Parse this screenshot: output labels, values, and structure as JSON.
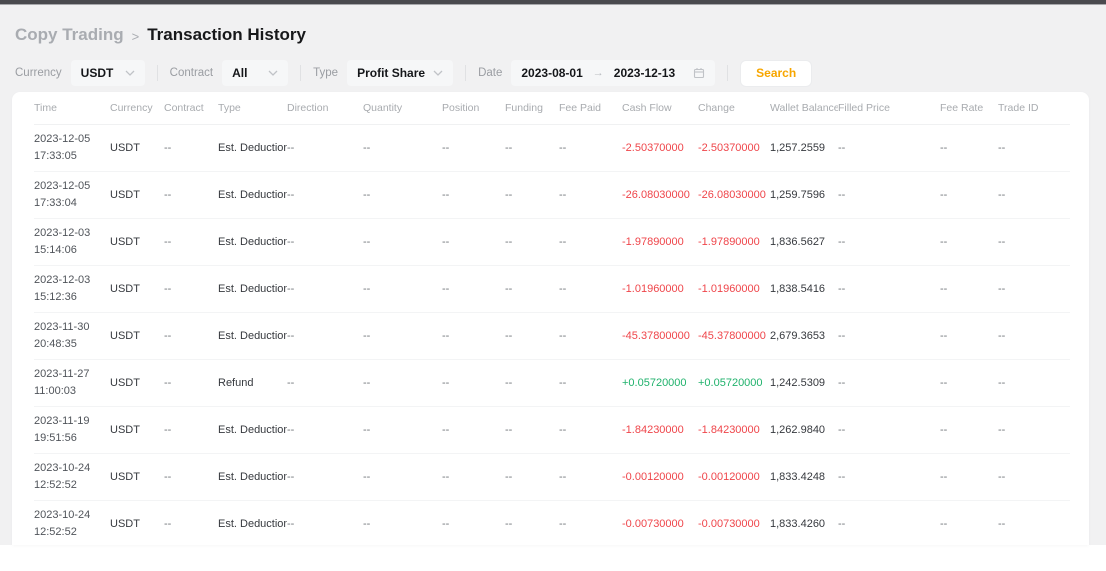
{
  "breadcrumb": {
    "parent": "Copy Trading",
    "separator": ">",
    "current": "Transaction History"
  },
  "filters": {
    "currency_label": "Currency",
    "currency_value": "USDT",
    "contract_label": "Contract",
    "contract_value": "All",
    "type_label": "Type",
    "type_value": "Profit Share",
    "date_label": "Date",
    "date_start": "2023-08-01",
    "date_arrow": "→",
    "date_end": "2023-12-13",
    "search_label": "Search"
  },
  "table": {
    "columns": [
      "Time",
      "Currency",
      "Contract",
      "Type",
      "Direction",
      "Quantity",
      "Position",
      "Funding",
      "Fee Paid",
      "Cash Flow",
      "Change",
      "Wallet Balance",
      "Filled Price",
      "Fee Rate",
      "Trade ID"
    ],
    "rows": [
      {
        "date": "2023-12-05",
        "time": "17:33:05",
        "currency": "USDT",
        "contract": "--",
        "type": "Est. Deduction",
        "direction": "--",
        "quantity": "--",
        "position": "--",
        "funding": "--",
        "fee_paid": "--",
        "cash_flow": "-2.50370000",
        "change": "-2.50370000",
        "wallet_balance": "1,257.2559",
        "filled_price": "--",
        "fee_rate": "--",
        "trade_id": "--"
      },
      {
        "date": "2023-12-05",
        "time": "17:33:04",
        "currency": "USDT",
        "contract": "--",
        "type": "Est. Deduction",
        "direction": "--",
        "quantity": "--",
        "position": "--",
        "funding": "--",
        "fee_paid": "--",
        "cash_flow": "-26.08030000",
        "change": "-26.08030000",
        "wallet_balance": "1,259.7596",
        "filled_price": "--",
        "fee_rate": "--",
        "trade_id": "--"
      },
      {
        "date": "2023-12-03",
        "time": "15:14:06",
        "currency": "USDT",
        "contract": "--",
        "type": "Est. Deduction",
        "direction": "--",
        "quantity": "--",
        "position": "--",
        "funding": "--",
        "fee_paid": "--",
        "cash_flow": "-1.97890000",
        "change": "-1.97890000",
        "wallet_balance": "1,836.5627",
        "filled_price": "--",
        "fee_rate": "--",
        "trade_id": "--"
      },
      {
        "date": "2023-12-03",
        "time": "15:12:36",
        "currency": "USDT",
        "contract": "--",
        "type": "Est. Deduction",
        "direction": "--",
        "quantity": "--",
        "position": "--",
        "funding": "--",
        "fee_paid": "--",
        "cash_flow": "-1.01960000",
        "change": "-1.01960000",
        "wallet_balance": "1,838.5416",
        "filled_price": "--",
        "fee_rate": "--",
        "trade_id": "--"
      },
      {
        "date": "2023-11-30",
        "time": "20:48:35",
        "currency": "USDT",
        "contract": "--",
        "type": "Est. Deduction",
        "direction": "--",
        "quantity": "--",
        "position": "--",
        "funding": "--",
        "fee_paid": "--",
        "cash_flow": "-45.37800000",
        "change": "-45.37800000",
        "wallet_balance": "2,679.3653",
        "filled_price": "--",
        "fee_rate": "--",
        "trade_id": "--"
      },
      {
        "date": "2023-11-27",
        "time": "11:00:03",
        "currency": "USDT",
        "contract": "--",
        "type": "Refund",
        "direction": "--",
        "quantity": "--",
        "position": "--",
        "funding": "--",
        "fee_paid": "--",
        "cash_flow": "+0.05720000",
        "change": "+0.05720000",
        "wallet_balance": "1,242.5309",
        "filled_price": "--",
        "fee_rate": "--",
        "trade_id": "--"
      },
      {
        "date": "2023-11-19",
        "time": "19:51:56",
        "currency": "USDT",
        "contract": "--",
        "type": "Est. Deduction",
        "direction": "--",
        "quantity": "--",
        "position": "--",
        "funding": "--",
        "fee_paid": "--",
        "cash_flow": "-1.84230000",
        "change": "-1.84230000",
        "wallet_balance": "1,262.9840",
        "filled_price": "--",
        "fee_rate": "--",
        "trade_id": "--"
      },
      {
        "date": "2023-10-24",
        "time": "12:52:52",
        "currency": "USDT",
        "contract": "--",
        "type": "Est. Deduction",
        "direction": "--",
        "quantity": "--",
        "position": "--",
        "funding": "--",
        "fee_paid": "--",
        "cash_flow": "-0.00120000",
        "change": "-0.00120000",
        "wallet_balance": "1,833.4248",
        "filled_price": "--",
        "fee_rate": "--",
        "trade_id": "--"
      },
      {
        "date": "2023-10-24",
        "time": "12:52:52",
        "currency": "USDT",
        "contract": "--",
        "type": "Est. Deduction",
        "direction": "--",
        "quantity": "--",
        "position": "--",
        "funding": "--",
        "fee_paid": "--",
        "cash_flow": "-0.00730000",
        "change": "-0.00730000",
        "wallet_balance": "1,833.4260",
        "filled_price": "--",
        "fee_rate": "--",
        "trade_id": "--"
      }
    ]
  },
  "colors": {
    "accent_orange": "#f7a600",
    "negative_red": "#ef454a",
    "positive_green": "#20b26c"
  }
}
